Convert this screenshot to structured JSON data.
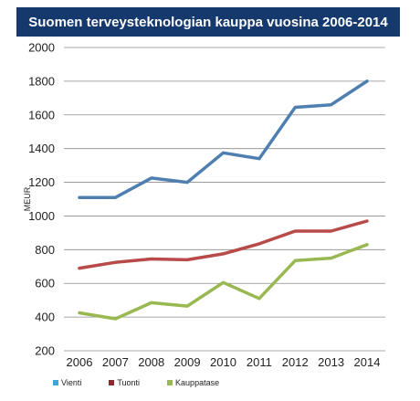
{
  "chart_data": {
    "type": "line",
    "title": "Suomen terveysteknologian kauppa vuosina 2006-2014",
    "title_bg": "#15386d",
    "ylabel": "MEUR",
    "xlabel": "",
    "ylim": [
      200,
      2000
    ],
    "yticks": [
      200,
      400,
      600,
      800,
      1000,
      1200,
      1400,
      1600,
      1800,
      2000
    ],
    "grid": true,
    "legend_position": "bottom-left",
    "categories": [
      "2006",
      "2007",
      "2008",
      "2009",
      "2010",
      "2011",
      "2012",
      "2013",
      "2014"
    ],
    "series": [
      {
        "name": "Vienti",
        "color": "#4f7fb0",
        "legend_color": "#3aa8e0",
        "values": [
          1110,
          1110,
          1225,
          1200,
          1375,
          1340,
          1645,
          1660,
          1800
        ]
      },
      {
        "name": "Tuonti",
        "color": "#b84b49",
        "legend_color": "#8b2b2f",
        "values": [
          690,
          725,
          745,
          740,
          775,
          835,
          910,
          910,
          970
        ]
      },
      {
        "name": "Kauppatase",
        "color": "#9ab851",
        "legend_color": "#9ab851",
        "values": [
          425,
          390,
          485,
          465,
          605,
          510,
          735,
          750,
          830
        ]
      }
    ]
  }
}
